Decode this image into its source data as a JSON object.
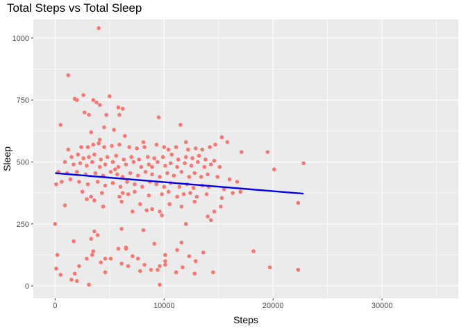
{
  "chart_data": {
    "type": "scatter",
    "title": "Total Steps vs Total Sleep",
    "xlabel": "Steps",
    "ylabel": "Sleep",
    "xlim": [
      -2000,
      37000
    ],
    "ylim": [
      -50,
      1075
    ],
    "x_ticks": [
      0,
      10000,
      20000,
      30000
    ],
    "x_tick_labels": [
      "0",
      "10000",
      "20000",
      "30000"
    ],
    "y_ticks": [
      0,
      250,
      500,
      750,
      1000
    ],
    "y_tick_labels": [
      "0",
      "250",
      "500",
      "750",
      "1000"
    ],
    "grid": true,
    "legend": "none",
    "colors": {
      "panel": "#ebebeb",
      "grid": "#ffffff",
      "points": "#f8766d",
      "trend": "#0000ee"
    },
    "series": [
      {
        "points": [
          [
            4000,
            1040
          ],
          [
            1200,
            850
          ],
          [
            2600,
            770
          ],
          [
            5000,
            765
          ],
          [
            1800,
            755
          ],
          [
            2000,
            750
          ],
          [
            3500,
            750
          ],
          [
            3800,
            740
          ],
          [
            4100,
            730
          ],
          [
            5800,
            720
          ],
          [
            6200,
            715
          ],
          [
            2700,
            700
          ],
          [
            3100,
            690
          ],
          [
            4700,
            690
          ],
          [
            5900,
            690
          ],
          [
            9500,
            680
          ],
          [
            500,
            650
          ],
          [
            11500,
            650
          ],
          [
            4500,
            640
          ],
          [
            3300,
            620
          ],
          [
            5400,
            630
          ],
          [
            15300,
            600
          ],
          [
            4100,
            590
          ],
          [
            6400,
            605
          ],
          [
            15800,
            580
          ],
          [
            8100,
            580
          ],
          [
            12000,
            580
          ],
          [
            1200,
            550
          ],
          [
            2400,
            560
          ],
          [
            3000,
            560
          ],
          [
            3500,
            570
          ],
          [
            4000,
            575
          ],
          [
            4500,
            560
          ],
          [
            5200,
            565
          ],
          [
            5900,
            570
          ],
          [
            6800,
            560
          ],
          [
            7500,
            555
          ],
          [
            8200,
            560
          ],
          [
            9300,
            570
          ],
          [
            10000,
            560
          ],
          [
            10400,
            550
          ],
          [
            11100,
            560
          ],
          [
            12200,
            550
          ],
          [
            12900,
            555
          ],
          [
            13500,
            550
          ],
          [
            14200,
            560
          ],
          [
            14700,
            570
          ],
          [
            17100,
            540
          ],
          [
            19500,
            540
          ],
          [
            1500,
            520
          ],
          [
            2100,
            530
          ],
          [
            2600,
            515
          ],
          [
            3100,
            520
          ],
          [
            3600,
            530
          ],
          [
            4200,
            510
          ],
          [
            4800,
            520
          ],
          [
            5600,
            525
          ],
          [
            6300,
            510
          ],
          [
            7000,
            520
          ],
          [
            7700,
            510
          ],
          [
            8500,
            520
          ],
          [
            9100,
            515
          ],
          [
            9900,
            520
          ],
          [
            10700,
            530
          ],
          [
            11300,
            510
          ],
          [
            12000,
            520
          ],
          [
            12600,
            515
          ],
          [
            13200,
            525
          ],
          [
            13800,
            510
          ],
          [
            14600,
            505
          ],
          [
            900,
            500
          ],
          [
            1700,
            490
          ],
          [
            2300,
            495
          ],
          [
            2900,
            485
          ],
          [
            3400,
            500
          ],
          [
            4100,
            480
          ],
          [
            4600,
            490
          ],
          [
            5300,
            500
          ],
          [
            5800,
            480
          ],
          [
            6500,
            490
          ],
          [
            7200,
            500
          ],
          [
            7900,
            480
          ],
          [
            8600,
            490
          ],
          [
            9400,
            500
          ],
          [
            10100,
            485
          ],
          [
            10600,
            495
          ],
          [
            11200,
            480
          ],
          [
            11900,
            495
          ],
          [
            12500,
            485
          ],
          [
            13100,
            500
          ],
          [
            13700,
            480
          ],
          [
            14300,
            490
          ],
          [
            15100,
            480
          ],
          [
            22800,
            495
          ],
          [
            20100,
            470
          ],
          [
            300,
            460
          ],
          [
            1100,
            455
          ],
          [
            2000,
            460
          ],
          [
            2800,
            450
          ],
          [
            3700,
            455
          ],
          [
            4400,
            445
          ],
          [
            5100,
            460
          ],
          [
            5700,
            450
          ],
          [
            6200,
            440
          ],
          [
            6900,
            455
          ],
          [
            7600,
            445
          ],
          [
            8300,
            460
          ],
          [
            8900,
            450
          ],
          [
            9600,
            440
          ],
          [
            10300,
            455
          ],
          [
            10900,
            445
          ],
          [
            11600,
            460
          ],
          [
            12300,
            440
          ],
          [
            12800,
            455
          ],
          [
            13400,
            440
          ],
          [
            14000,
            450
          ],
          [
            14900,
            440
          ],
          [
            16000,
            430
          ],
          [
            16700,
            420
          ],
          [
            600,
            420
          ],
          [
            1400,
            430
          ],
          [
            2200,
            420
          ],
          [
            3000,
            410
          ],
          [
            3900,
            420
          ],
          [
            4600,
            405
          ],
          [
            5300,
            415
          ],
          [
            6000,
            400
          ],
          [
            6600,
            420
          ],
          [
            7300,
            410
          ],
          [
            8000,
            400
          ],
          [
            8700,
            420
          ],
          [
            9300,
            410
          ],
          [
            10000,
            400
          ],
          [
            10600,
            415
          ],
          [
            11400,
            400
          ],
          [
            12100,
            410
          ],
          [
            12700,
            395
          ],
          [
            13500,
            405
          ],
          [
            14100,
            400
          ],
          [
            15500,
            390
          ],
          [
            17000,
            380
          ],
          [
            100,
            410
          ],
          [
            2500,
            380
          ],
          [
            3300,
            360
          ],
          [
            4300,
            375
          ],
          [
            5900,
            360
          ],
          [
            6700,
            370
          ],
          [
            7300,
            380
          ],
          [
            8600,
            365
          ],
          [
            9800,
            370
          ],
          [
            10400,
            380
          ],
          [
            11200,
            360
          ],
          [
            11800,
            370
          ],
          [
            12400,
            375
          ],
          [
            13000,
            360
          ],
          [
            13900,
            370
          ],
          [
            15300,
            355
          ],
          [
            16300,
            375
          ],
          [
            2900,
            350
          ],
          [
            3600,
            345
          ],
          [
            4400,
            320
          ],
          [
            6100,
            340
          ],
          [
            7800,
            330
          ],
          [
            8900,
            310
          ],
          [
            9600,
            300
          ],
          [
            10500,
            330
          ],
          [
            11600,
            320
          ],
          [
            12800,
            340
          ],
          [
            14600,
            300
          ],
          [
            15200,
            320
          ],
          [
            900,
            325
          ],
          [
            8400,
            305
          ],
          [
            7100,
            300
          ],
          [
            9800,
            285
          ],
          [
            14000,
            280
          ],
          [
            14300,
            265
          ],
          [
            12000,
            250
          ],
          [
            8100,
            225
          ],
          [
            3600,
            220
          ],
          [
            3900,
            205
          ],
          [
            3300,
            190
          ],
          [
            6100,
            230
          ],
          [
            6500,
            150
          ],
          [
            1700,
            180
          ],
          [
            3500,
            140
          ],
          [
            5800,
            150
          ],
          [
            6500,
            155
          ],
          [
            9100,
            170
          ],
          [
            10100,
            125
          ],
          [
            11600,
            175
          ],
          [
            13600,
            135
          ],
          [
            18200,
            140
          ],
          [
            3400,
            125
          ],
          [
            4200,
            95
          ],
          [
            4600,
            110
          ],
          [
            5100,
            110
          ],
          [
            7100,
            120
          ],
          [
            7600,
            110
          ],
          [
            10100,
            100
          ],
          [
            11200,
            145
          ],
          [
            12300,
            120
          ],
          [
            12900,
            100
          ],
          [
            2900,
            110
          ],
          [
            200,
            125
          ],
          [
            100,
            70
          ],
          [
            2200,
            80
          ],
          [
            1800,
            50
          ],
          [
            500,
            45
          ],
          [
            2000,
            20
          ],
          [
            1500,
            25
          ],
          [
            3100,
            5
          ],
          [
            4600,
            55
          ],
          [
            6100,
            90
          ],
          [
            6700,
            80
          ],
          [
            8200,
            85
          ],
          [
            8800,
            65
          ],
          [
            9600,
            80
          ],
          [
            10100,
            85
          ],
          [
            9400,
            65
          ],
          [
            7800,
            60
          ],
          [
            11100,
            55
          ],
          [
            12800,
            50
          ],
          [
            14500,
            55
          ],
          [
            9600,
            5
          ],
          [
            11700,
            75
          ],
          [
            19700,
            75
          ],
          [
            22300,
            65
          ],
          [
            22300,
            335
          ],
          [
            0,
            250
          ],
          [
            6200,
            375
          ],
          [
            5500,
            470
          ],
          [
            8900,
            480
          ]
        ]
      }
    ],
    "trend_line": {
      "x": [
        0,
        22800
      ],
      "y": [
        455,
        372
      ]
    }
  }
}
